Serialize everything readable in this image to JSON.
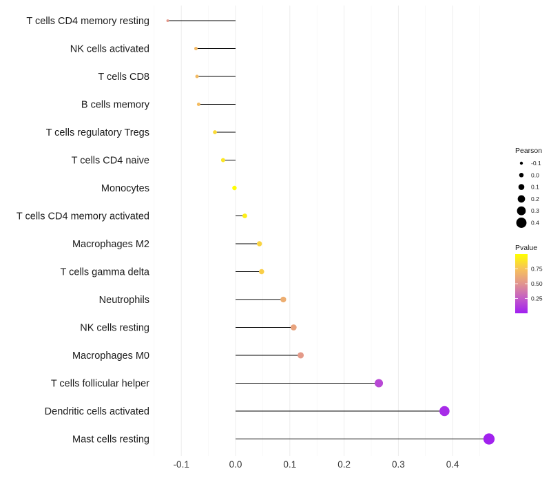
{
  "chart_data": {
    "type": "lollipop",
    "title": "",
    "xlabel": "",
    "ylabel": "",
    "xlim": [
      -0.15,
      0.47
    ],
    "x_ticks": [
      -0.1,
      0.0,
      0.1,
      0.2,
      0.3,
      0.4
    ],
    "x_tick_labels": [
      "-0.1",
      "0.0",
      "0.1",
      "0.2",
      "0.3",
      "0.4"
    ],
    "grid": "vertical",
    "categories": [
      "T cells CD4 memory resting",
      "NK cells activated",
      "T cells CD8",
      "B cells memory",
      "T cells regulatory  Tregs ",
      "T cells CD4 naive",
      "Monocytes",
      "T cells CD4 memory activated",
      "Macrophages M2",
      "T cells gamma delta",
      "Neutrophils",
      "NK cells resting",
      "Macrophages M0",
      "T cells follicular helper",
      "Dendritic cells activated",
      "Mast cells resting"
    ],
    "pearson": [
      -0.125,
      -0.073,
      -0.071,
      -0.068,
      -0.038,
      -0.023,
      -0.002,
      0.017,
      0.044,
      0.048,
      0.088,
      0.107,
      0.12,
      0.264,
      0.385,
      0.467
    ],
    "pvalue": [
      0.52,
      0.7,
      0.71,
      0.72,
      0.85,
      0.9,
      0.99,
      0.93,
      0.82,
      0.8,
      0.64,
      0.58,
      0.53,
      0.17,
      0.05,
      0.01
    ],
    "legend": {
      "size": {
        "title": "Pearson",
        "values": [
          -0.1,
          0.0,
          0.1,
          0.2,
          0.3,
          0.4
        ],
        "labels": [
          "-0.1",
          "0.0",
          "0.1",
          "0.2",
          "0.3",
          "0.4"
        ]
      },
      "color": {
        "title": "Pvalue",
        "range": [
          0.0,
          1.0
        ],
        "ticks": [
          0.75,
          0.5,
          0.25
        ],
        "tick_labels": [
          "0.75",
          "0.50",
          "0.25"
        ],
        "low_color": "#a020f0",
        "high_color": "#ffff00"
      },
      "placement": "right"
    },
    "colors": {
      "segment": "#000000",
      "grid": "#ebebeb",
      "gradient": [
        "#a020f0",
        "#c35bc8",
        "#e1948f",
        "#f7c25a",
        "#ffff00"
      ]
    }
  }
}
